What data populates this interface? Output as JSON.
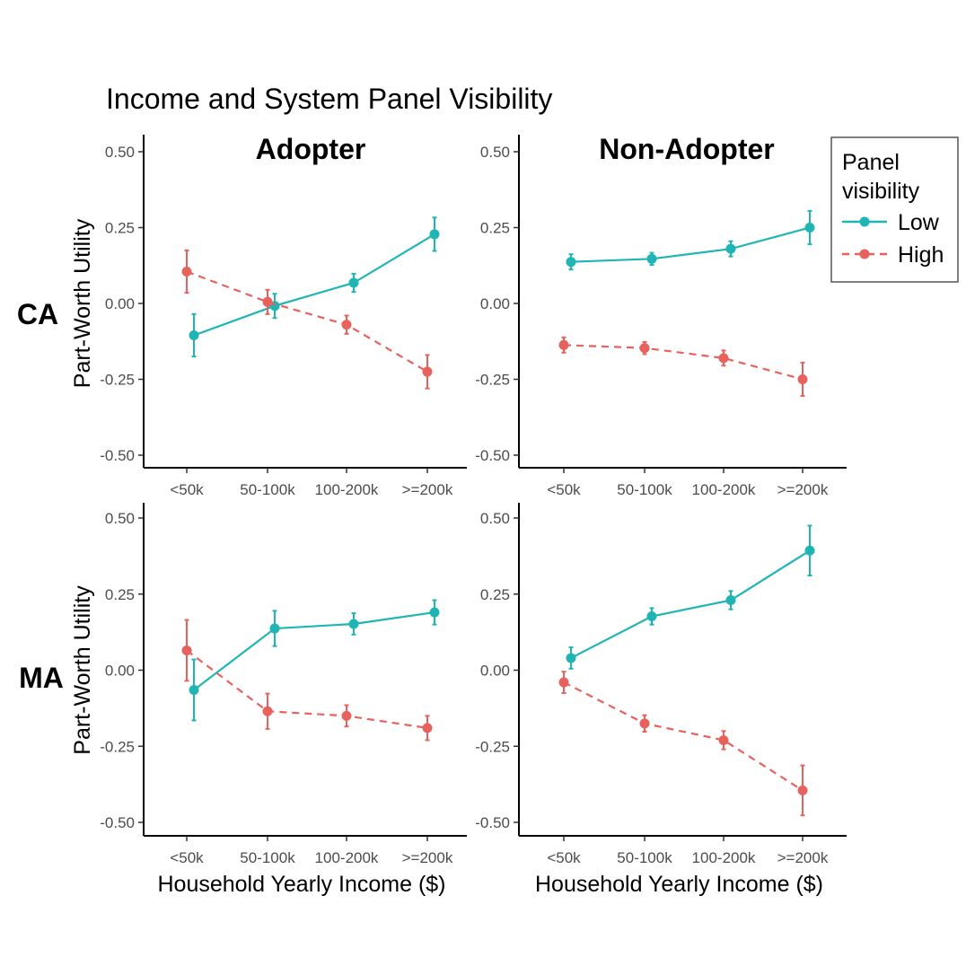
{
  "chart_data": {
    "type": "line",
    "title": "Income and System Panel Visibility",
    "columns": [
      "Adopter",
      "Non-Adopter"
    ],
    "rows": [
      "CA",
      "MA"
    ],
    "categories": [
      "<50k",
      "50-100k",
      "100-200k",
      ">=200k"
    ],
    "xlabel": "Household Yearly Income ($)",
    "ylabel": "Part-Worth Utility",
    "ylim": [
      -0.5,
      0.5
    ],
    "yticks": [
      0.5,
      0.25,
      0.0,
      -0.25,
      -0.5
    ],
    "ytick_labels": [
      "0.50",
      "0.25",
      "0.00",
      "-0.25",
      "-0.50"
    ],
    "legend": {
      "title_line1": "Panel",
      "title_line2": "visibility",
      "placement": "top-right",
      "entries": [
        {
          "name": "Low",
          "color": "#1FB5B5",
          "style": "solid"
        },
        {
          "name": "High",
          "color": "#E8625D",
          "style": "dashed"
        }
      ]
    },
    "panels": [
      {
        "row": "CA",
        "column": "Adopter",
        "series": [
          {
            "name": "Low",
            "values": [
              -0.105,
              -0.008,
              0.068,
              0.228
            ],
            "err": [
              0.07,
              0.04,
              0.03,
              0.055
            ]
          },
          {
            "name": "High",
            "values": [
              0.105,
              0.005,
              -0.07,
              -0.225
            ],
            "err": [
              0.07,
              0.04,
              0.03,
              0.055
            ]
          }
        ]
      },
      {
        "row": "CA",
        "column": "Non-Adopter",
        "series": [
          {
            "name": "Low",
            "values": [
              0.137,
              0.147,
              0.18,
              0.25
            ],
            "err": [
              0.025,
              0.02,
              0.025,
              0.055
            ]
          },
          {
            "name": "High",
            "values": [
              -0.137,
              -0.147,
              -0.18,
              -0.25
            ],
            "err": [
              0.025,
              0.02,
              0.025,
              0.055
            ]
          }
        ]
      },
      {
        "row": "MA",
        "column": "Adopter",
        "series": [
          {
            "name": "Low",
            "values": [
              -0.065,
              0.137,
              0.152,
              0.19
            ],
            "err": [
              0.1,
              0.058,
              0.035,
              0.04
            ]
          },
          {
            "name": "High",
            "values": [
              0.065,
              -0.135,
              -0.15,
              -0.19
            ],
            "err": [
              0.1,
              0.058,
              0.035,
              0.04
            ]
          }
        ]
      },
      {
        "row": "MA",
        "column": "Non-Adopter",
        "series": [
          {
            "name": "Low",
            "values": [
              0.04,
              0.177,
              0.23,
              0.393
            ],
            "err": [
              0.035,
              0.027,
              0.03,
              0.082
            ]
          },
          {
            "name": "High",
            "values": [
              -0.04,
              -0.175,
              -0.23,
              -0.395
            ],
            "err": [
              0.035,
              0.027,
              0.03,
              0.082
            ]
          }
        ]
      }
    ]
  }
}
